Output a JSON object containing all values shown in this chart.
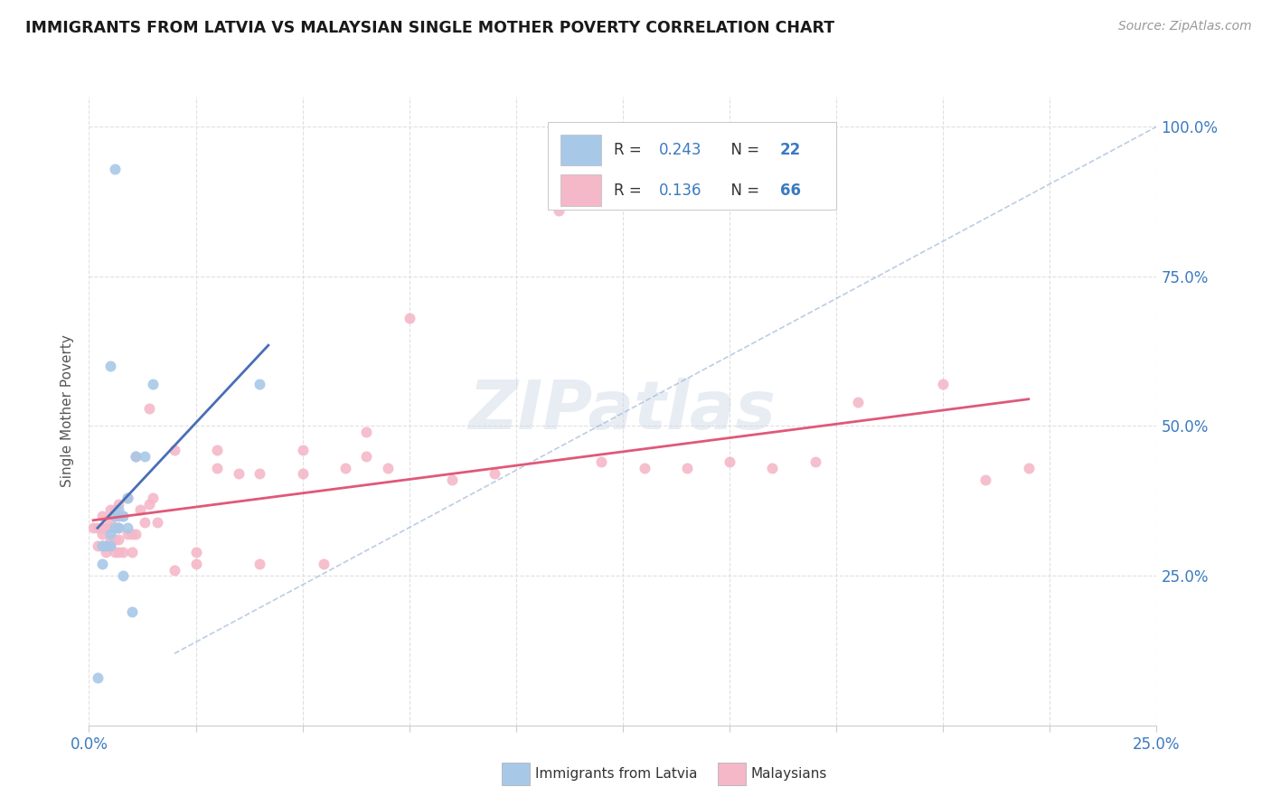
{
  "title": "IMMIGRANTS FROM LATVIA VS MALAYSIAN SINGLE MOTHER POVERTY CORRELATION CHART",
  "source": "Source: ZipAtlas.com",
  "ylabel": "Single Mother Poverty",
  "legend1_r": "0.243",
  "legend1_n": "22",
  "legend2_r": "0.136",
  "legend2_n": "66",
  "legend1_label": "Immigrants from Latvia",
  "legend2_label": "Malaysians",
  "watermark": "ZIPatlas",
  "blue_scatter_color": "#a8c8e8",
  "pink_scatter_color": "#f4b8c8",
  "blue_line_color": "#4a6eb5",
  "pink_line_color": "#e05878",
  "dashed_line_color": "#a0b8d8",
  "axis_label_color": "#3a7ac0",
  "x_lim": [
    0.0,
    0.25
  ],
  "y_lim": [
    0.0,
    1.05
  ],
  "x_ticks": [
    0.0,
    0.025,
    0.05,
    0.075,
    0.1,
    0.125,
    0.15,
    0.175,
    0.2,
    0.225,
    0.25
  ],
  "y_ticks": [
    0.25,
    0.5,
    0.75,
    1.0
  ],
  "latvia_x": [
    0.002,
    0.003,
    0.003,
    0.004,
    0.005,
    0.005,
    0.006,
    0.006,
    0.007,
    0.007,
    0.007,
    0.008,
    0.008,
    0.009,
    0.009,
    0.01,
    0.011,
    0.013,
    0.015,
    0.04,
    0.005,
    0.006
  ],
  "latvia_y": [
    0.08,
    0.3,
    0.27,
    0.3,
    0.3,
    0.32,
    0.33,
    0.35,
    0.33,
    0.35,
    0.36,
    0.25,
    0.35,
    0.33,
    0.38,
    0.19,
    0.45,
    0.45,
    0.57,
    0.57,
    0.6,
    0.93
  ],
  "malaysia_x": [
    0.001,
    0.002,
    0.002,
    0.003,
    0.003,
    0.003,
    0.003,
    0.004,
    0.004,
    0.005,
    0.005,
    0.005,
    0.005,
    0.005,
    0.006,
    0.006,
    0.006,
    0.006,
    0.007,
    0.007,
    0.007,
    0.007,
    0.008,
    0.008,
    0.009,
    0.009,
    0.01,
    0.01,
    0.011,
    0.011,
    0.012,
    0.013,
    0.014,
    0.014,
    0.015,
    0.016,
    0.02,
    0.02,
    0.025,
    0.025,
    0.03,
    0.03,
    0.035,
    0.04,
    0.04,
    0.05,
    0.05,
    0.055,
    0.06,
    0.065,
    0.065,
    0.07,
    0.075,
    0.085,
    0.095,
    0.11,
    0.12,
    0.13,
    0.14,
    0.15,
    0.16,
    0.17,
    0.18,
    0.2,
    0.21,
    0.22
  ],
  "malaysia_y": [
    0.33,
    0.3,
    0.33,
    0.3,
    0.32,
    0.33,
    0.35,
    0.29,
    0.33,
    0.3,
    0.31,
    0.33,
    0.34,
    0.36,
    0.29,
    0.31,
    0.33,
    0.36,
    0.29,
    0.31,
    0.33,
    0.37,
    0.29,
    0.35,
    0.32,
    0.38,
    0.29,
    0.32,
    0.45,
    0.32,
    0.36,
    0.34,
    0.37,
    0.53,
    0.38,
    0.34,
    0.26,
    0.46,
    0.27,
    0.29,
    0.43,
    0.46,
    0.42,
    0.42,
    0.27,
    0.42,
    0.46,
    0.27,
    0.43,
    0.45,
    0.49,
    0.43,
    0.68,
    0.41,
    0.42,
    0.86,
    0.44,
    0.43,
    0.43,
    0.44,
    0.43,
    0.44,
    0.54,
    0.57,
    0.41,
    0.43
  ]
}
